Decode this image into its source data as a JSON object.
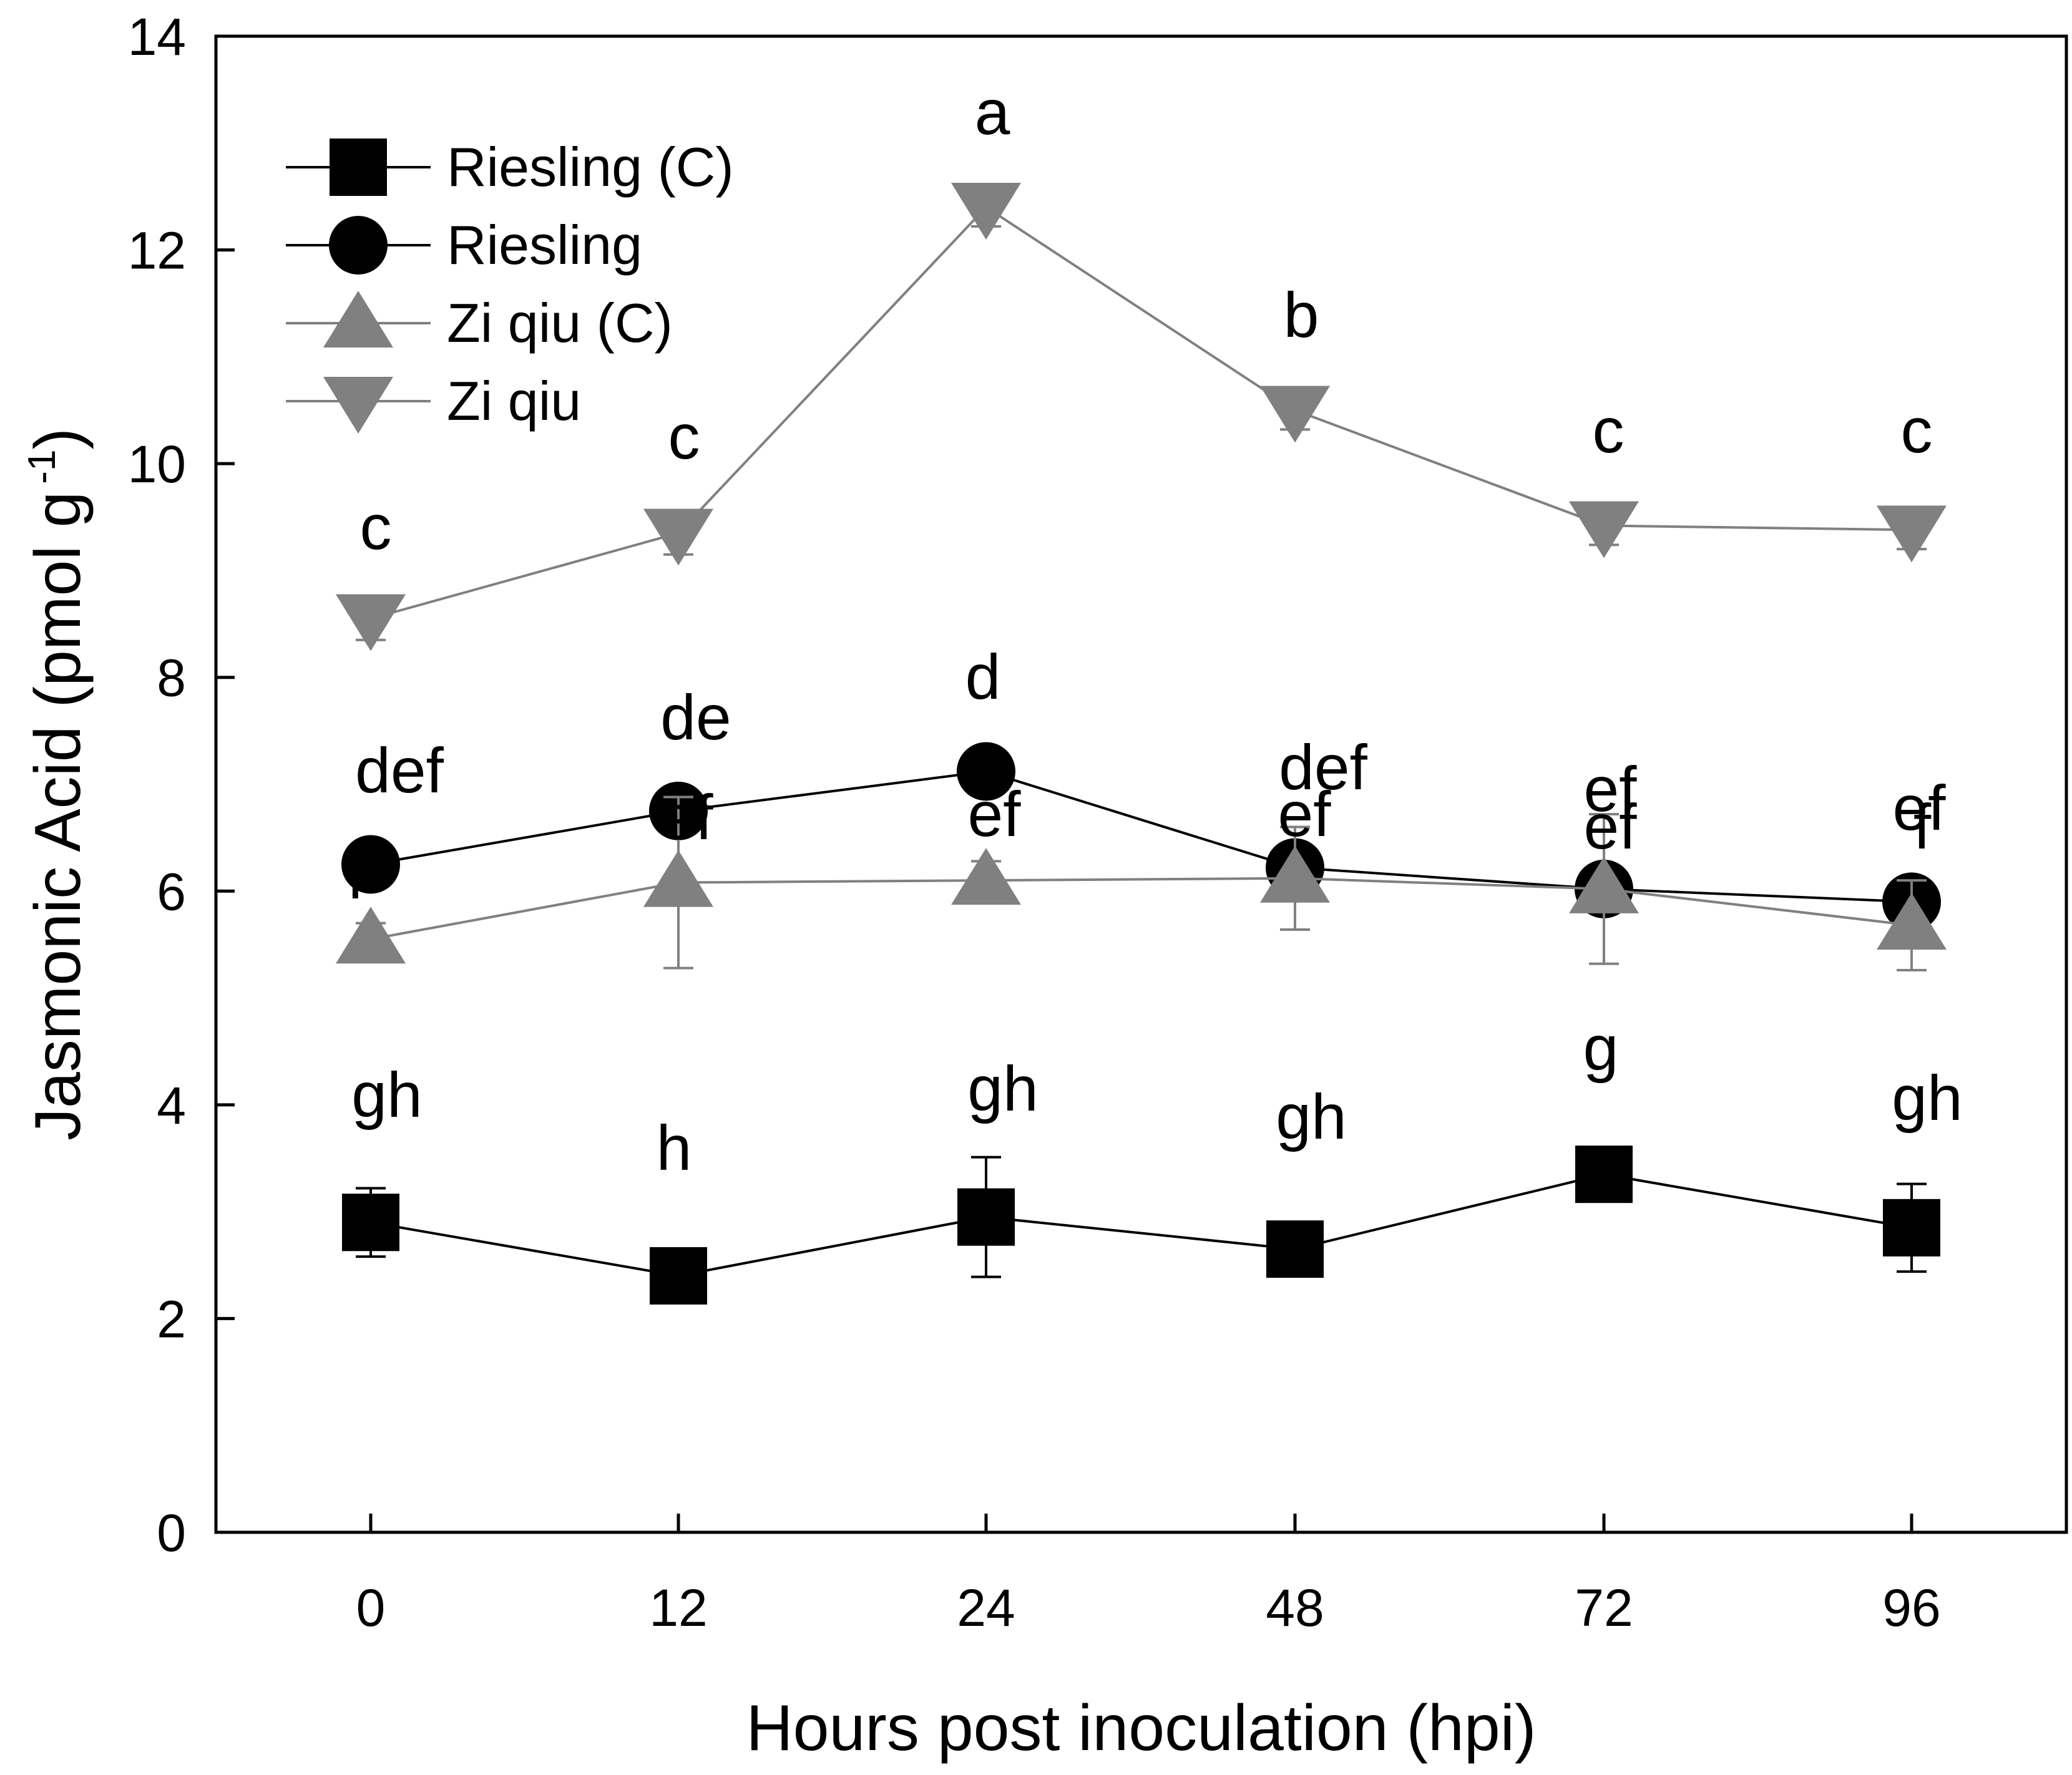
{
  "chart_data": {
    "type": "line",
    "title": "",
    "xlabel": "Hours post inoculation (hpi)",
    "ylabel": "Jasmonic Acid (pmol g",
    "ylabel_superscript": "-1",
    "ylabel_close": ")",
    "categories": [
      "0",
      "12",
      "24",
      "48",
      "72",
      "96"
    ],
    "y_ticks": [
      "0",
      "2",
      "4",
      "6",
      "8",
      "10",
      "12",
      "14"
    ],
    "ylim": [
      0,
      14
    ],
    "grid": false,
    "legend_position": "top-left",
    "series": [
      {
        "name": "Riesling (C)",
        "marker": "square",
        "color": "#000000",
        "values": [
          2.9,
          2.4,
          2.95,
          2.65,
          3.35,
          2.85
        ],
        "errors": [
          0.32,
          0.25,
          0.56,
          0.16,
          0.05,
          0.41
        ],
        "letters": [
          "gh",
          "h",
          "gh",
          "gh",
          "g",
          "gh"
        ]
      },
      {
        "name": "Riesling",
        "marker": "circle",
        "color": "#000000",
        "values": [
          6.25,
          6.75,
          7.12,
          6.22,
          6.02,
          5.9
        ],
        "errors": [
          0.08,
          0.15,
          0.06,
          0.08,
          0.06,
          0.06
        ],
        "letters": [
          "def",
          "de",
          "d",
          "def",
          "ef",
          "f"
        ]
      },
      {
        "name": "Zi qiu (C)",
        "marker": "triangle-up",
        "color": "#808080",
        "values": [
          5.55,
          6.08,
          6.1,
          6.12,
          6.02,
          5.68
        ],
        "errors": [
          0.15,
          0.8,
          0.18,
          0.48,
          0.7,
          0.42
        ],
        "letters": [
          "f",
          "ef",
          "ef",
          "ef",
          "ef",
          "ef"
        ]
      },
      {
        "name": "Zi qiu",
        "marker": "triangle-down",
        "color": "#808080",
        "values": [
          8.55,
          9.35,
          12.4,
          10.5,
          9.42,
          9.38
        ],
        "errors": [
          0.2,
          0.2,
          0.18,
          0.18,
          0.18,
          0.18
        ],
        "letters": [
          "c",
          "c",
          "a",
          "b",
          "c",
          "c"
        ]
      }
    ]
  }
}
